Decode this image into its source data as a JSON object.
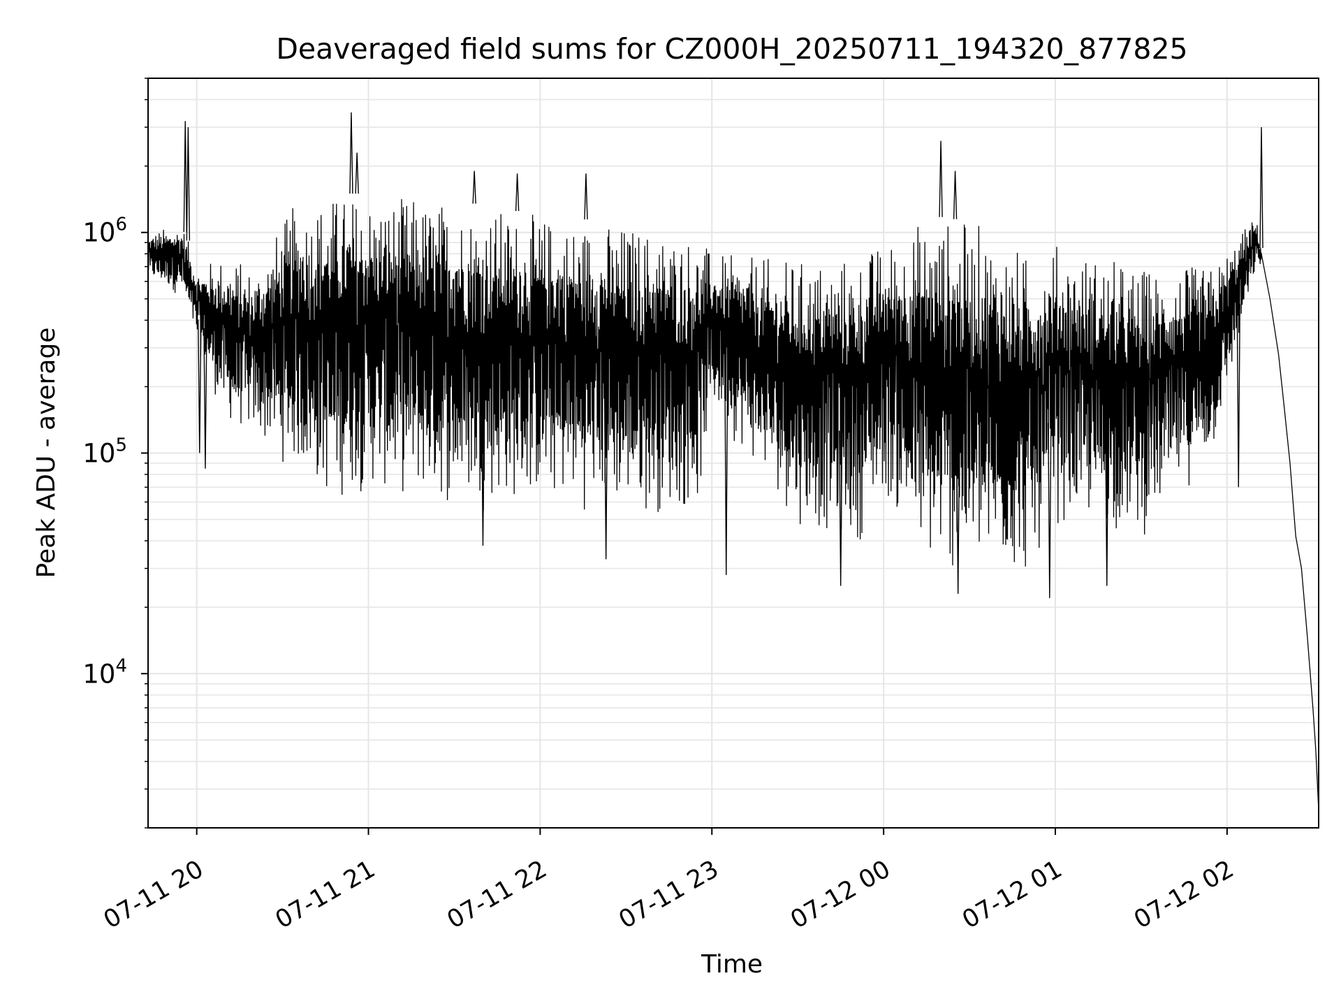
{
  "chart_data": {
    "type": "line",
    "title": "Deaveraged field sums for CZ000H_20250711_194320_877825",
    "xlabel": "Time",
    "ylabel": "Peak ADU - average",
    "x_scale": "time",
    "y_scale": "log",
    "xlim": [
      "2025-07-11 19:43",
      "2025-07-12 02:32"
    ],
    "ylim": [
      2000,
      5000000
    ],
    "x_ticks": [
      {
        "value": "2025-07-11 20:00",
        "label": "07-11 20"
      },
      {
        "value": "2025-07-11 21:00",
        "label": "07-11 21"
      },
      {
        "value": "2025-07-11 22:00",
        "label": "07-11 22"
      },
      {
        "value": "2025-07-11 23:00",
        "label": "07-11 23"
      },
      {
        "value": "2025-07-12 00:00",
        "label": "07-12 00"
      },
      {
        "value": "2025-07-12 01:00",
        "label": "07-12 01"
      },
      {
        "value": "2025-07-12 02:00",
        "label": "07-12 02"
      }
    ],
    "y_ticks": [
      {
        "value": 10000,
        "base": "10",
        "exp": "4"
      },
      {
        "value": 100000,
        "base": "10",
        "exp": "5"
      },
      {
        "value": 1000000,
        "base": "10",
        "exp": "6"
      }
    ],
    "grid": true,
    "line_color": "#000000",
    "series": [
      {
        "envelope": [
          {
            "t": "2025-07-11 19:43",
            "hi": 1000000,
            "lo": 600000
          },
          {
            "t": "2025-07-11 19:55",
            "hi": 1100000,
            "lo": 500000
          },
          {
            "t": "2025-07-11 20:00",
            "hi": 700000,
            "lo": 300000
          },
          {
            "t": "2025-07-11 20:10",
            "hi": 800000,
            "lo": 130000
          },
          {
            "t": "2025-07-11 20:20",
            "hi": 700000,
            "lo": 110000
          },
          {
            "t": "2025-07-11 20:35",
            "hi": 1400000,
            "lo": 75000
          },
          {
            "t": "2025-07-11 20:45",
            "hi": 1500000,
            "lo": 55000
          },
          {
            "t": "2025-07-11 21:00",
            "hi": 1500000,
            "lo": 62000
          },
          {
            "t": "2025-07-11 21:30",
            "hi": 1400000,
            "lo": 52000
          },
          {
            "t": "2025-07-11 22:00",
            "hi": 1200000,
            "lo": 55000
          },
          {
            "t": "2025-07-11 22:30",
            "hi": 1100000,
            "lo": 50000
          },
          {
            "t": "2025-07-11 22:55",
            "hi": 1000000,
            "lo": 50000
          },
          {
            "t": "2025-07-11 23:00",
            "hi": 800000,
            "lo": 150000
          },
          {
            "t": "2025-07-11 23:30",
            "hi": 750000,
            "lo": 45000
          },
          {
            "t": "2025-07-11 23:50",
            "hi": 800000,
            "lo": 35000
          },
          {
            "t": "2025-07-12 00:00",
            "hi": 900000,
            "lo": 60000
          },
          {
            "t": "2025-07-12 00:15",
            "hi": 1200000,
            "lo": 26000
          },
          {
            "t": "2025-07-12 00:35",
            "hi": 1100000,
            "lo": 24000
          },
          {
            "t": "2025-07-12 00:50",
            "hi": 800000,
            "lo": 24000
          },
          {
            "t": "2025-07-12 01:00",
            "hi": 900000,
            "lo": 45000
          },
          {
            "t": "2025-07-12 01:30",
            "hi": 700000,
            "lo": 38000
          },
          {
            "t": "2025-07-12 01:55",
            "hi": 700000,
            "lo": 90000
          },
          {
            "t": "2025-07-12 02:10",
            "hi": 1200000,
            "lo": 650000
          },
          {
            "t": "2025-07-12 02:12",
            "hi": 850000,
            "lo": 700000
          }
        ],
        "spikes": [
          {
            "t": "2025-07-11 19:56",
            "y": 3200000
          },
          {
            "t": "2025-07-11 19:57",
            "y": 3000000
          },
          {
            "t": "2025-07-11 20:54",
            "y": 3500000
          },
          {
            "t": "2025-07-11 20:56",
            "y": 2300000
          },
          {
            "t": "2025-07-11 21:37",
            "y": 1900000
          },
          {
            "t": "2025-07-11 21:52",
            "y": 1850000
          },
          {
            "t": "2025-07-11 22:16",
            "y": 1850000
          },
          {
            "t": "2025-07-12 00:20",
            "y": 2600000
          },
          {
            "t": "2025-07-12 00:25",
            "y": 1900000
          },
          {
            "t": "2025-07-12 02:12",
            "y": 3000000
          },
          {
            "t": "2025-07-11 20:01",
            "y": 100000
          },
          {
            "t": "2025-07-11 20:03",
            "y": 85000
          },
          {
            "t": "2025-07-11 21:40",
            "y": 38000
          },
          {
            "t": "2025-07-11 22:23",
            "y": 33000
          },
          {
            "t": "2025-07-11 23:05",
            "y": 28000
          },
          {
            "t": "2025-07-11 23:45",
            "y": 25000
          },
          {
            "t": "2025-07-12 00:26",
            "y": 23000
          },
          {
            "t": "2025-07-12 00:58",
            "y": 22000
          },
          {
            "t": "2025-07-12 01:18",
            "y": 25000
          },
          {
            "t": "2025-07-12 02:04",
            "y": 70000
          }
        ],
        "decay": [
          {
            "t": "2025-07-12 02:12",
            "y": 800000
          },
          {
            "t": "2025-07-12 02:15",
            "y": 500000
          },
          {
            "t": "2025-07-12 02:18",
            "y": 280000
          },
          {
            "t": "2025-07-12 02:20",
            "y": 160000
          },
          {
            "t": "2025-07-12 02:22",
            "y": 90000
          },
          {
            "t": "2025-07-12 02:24",
            "y": 42000
          },
          {
            "t": "2025-07-12 02:26",
            "y": 30000
          },
          {
            "t": "2025-07-12 02:28",
            "y": 15000
          },
          {
            "t": "2025-07-12 02:30",
            "y": 7000
          },
          {
            "t": "2025-07-12 02:31",
            "y": 4500
          },
          {
            "t": "2025-07-12 02:32",
            "y": 2400
          }
        ]
      }
    ]
  }
}
